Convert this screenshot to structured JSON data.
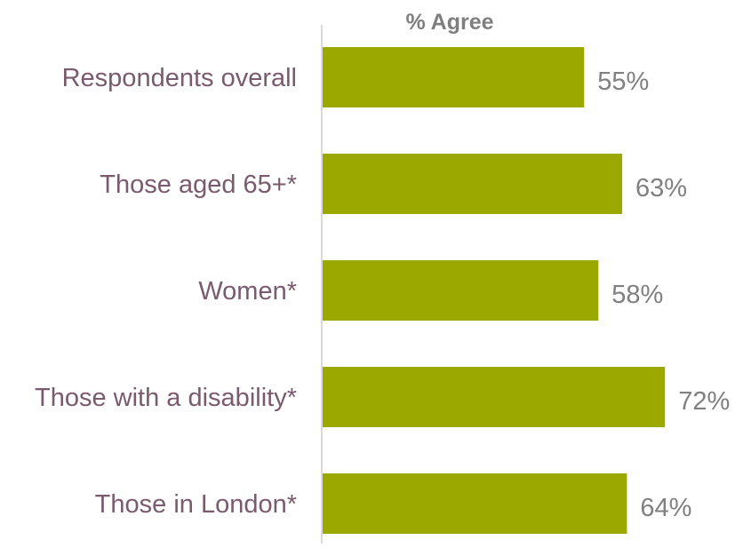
{
  "chart_data": {
    "type": "bar",
    "orientation": "horizontal",
    "title": "% Agree",
    "categories": [
      "Respondents overall",
      "Those aged 65+*",
      "Women*",
      "Those with a disability*",
      "Those in London*"
    ],
    "values": [
      55,
      63,
      58,
      72,
      64
    ],
    "value_labels": [
      "55%",
      "63%",
      "58%",
      "72%",
      "64%"
    ],
    "xlim": [
      0,
      100
    ],
    "grid": false,
    "legend": "none",
    "colors": {
      "bar": "#9aa800",
      "category_label": "#7a5a6e",
      "value_label": "#808080",
      "title": "#7f7f7f",
      "axis": "#d9d9d9"
    }
  }
}
